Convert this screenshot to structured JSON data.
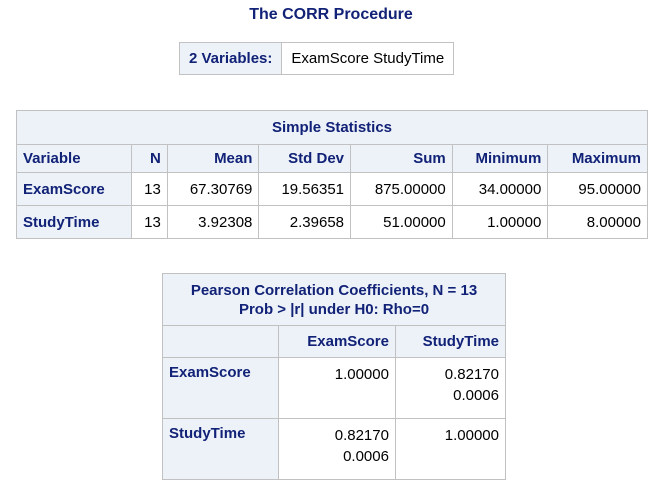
{
  "procedure_title": "The CORR Procedure",
  "variables": {
    "label": "2 Variables:",
    "value": "ExamScore StudyTime"
  },
  "simple_statistics": {
    "caption": "Simple Statistics",
    "columns": [
      "Variable",
      "N",
      "Mean",
      "Std Dev",
      "Sum",
      "Minimum",
      "Maximum"
    ],
    "rows": [
      {
        "variable": "ExamScore",
        "n": "13",
        "mean": "67.30769",
        "std_dev": "19.56351",
        "sum": "875.00000",
        "minimum": "34.00000",
        "maximum": "95.00000"
      },
      {
        "variable": "StudyTime",
        "n": "13",
        "mean": "3.92308",
        "std_dev": "2.39658",
        "sum": "51.00000",
        "minimum": "1.00000",
        "maximum": "8.00000"
      }
    ]
  },
  "pearson": {
    "caption_line1": "Pearson Correlation Coefficients, N = 13",
    "caption_line2": "Prob > |r| under H0: Rho=0",
    "columns": [
      "ExamScore",
      "StudyTime"
    ],
    "rows": [
      {
        "variable": "ExamScore",
        "cells": [
          {
            "r": "1.00000",
            "p": ""
          },
          {
            "r": "0.82170",
            "p": "0.0006"
          }
        ]
      },
      {
        "variable": "StudyTime",
        "cells": [
          {
            "r": "0.82170",
            "p": "0.0006"
          },
          {
            "r": "1.00000",
            "p": ""
          }
        ]
      }
    ]
  }
}
